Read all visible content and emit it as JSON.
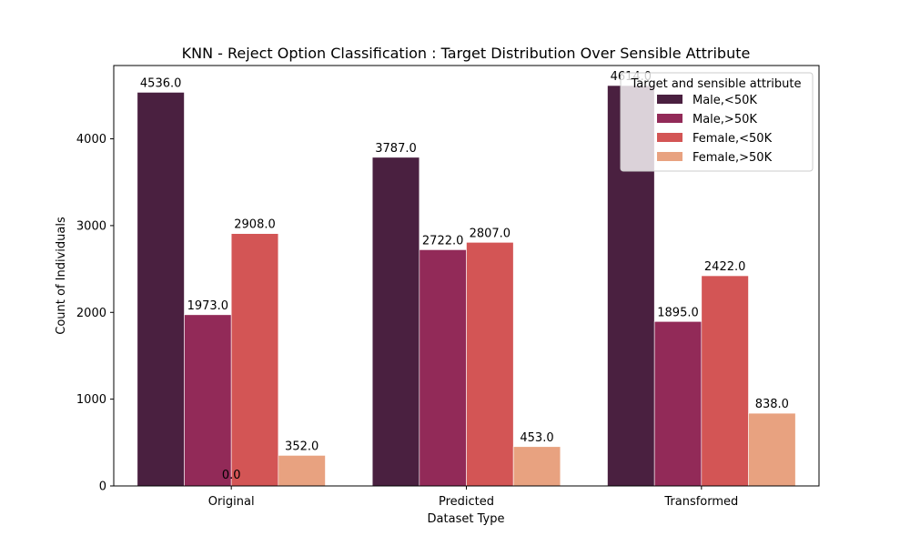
{
  "chart_data": {
    "type": "bar",
    "title": "KNN - Reject Option Classification : Target Distribution Over Sensible Attribute",
    "xlabel": "Dataset Type",
    "ylabel": "Count of Individuals",
    "categories": [
      "Original",
      "Predicted",
      "Transformed"
    ],
    "ylim": [
      0,
      4844.7
    ],
    "yticks": [
      0,
      1000,
      2000,
      3000,
      4000
    ],
    "grid": false,
    "legend": {
      "title": "Target and sensible attribute",
      "placement": "top-right"
    },
    "series": [
      {
        "name": "Male,<50K",
        "color": "#4a2040",
        "values": [
          4536.0,
          3787.0,
          4614.0
        ]
      },
      {
        "name": "Male,>50K",
        "color": "#922a58",
        "values": [
          1973.0,
          2722.0,
          1895.0
        ]
      },
      {
        "name": "Female,<50K",
        "color": "#d35555",
        "values": [
          2908.0,
          2807.0,
          2422.0
        ]
      },
      {
        "name": "Female,>50K",
        "color": "#e8a280",
        "values": [
          352.0,
          453.0,
          838.0
        ]
      }
    ],
    "annotations": [
      {
        "text": "0.0",
        "category": "Original",
        "note": "overlapping zero-value labels"
      }
    ]
  }
}
